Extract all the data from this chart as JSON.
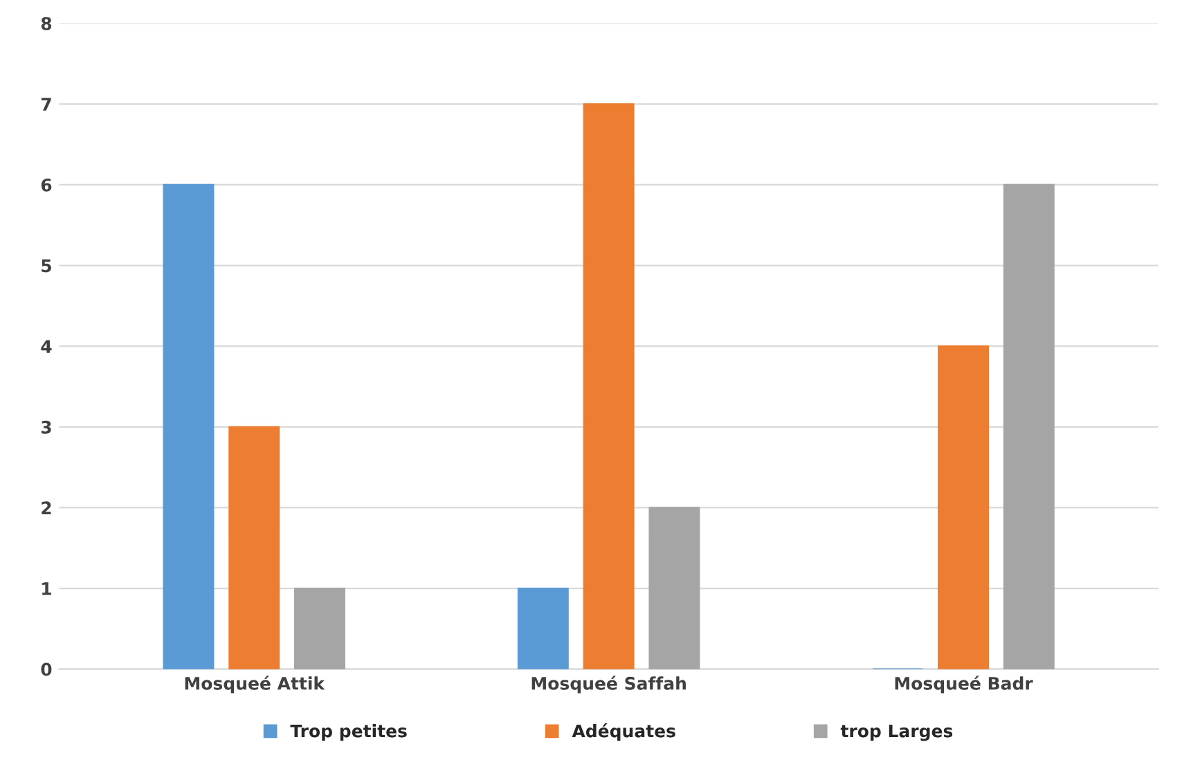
{
  "chart_data": {
    "type": "bar",
    "categories": [
      "Mosqueé Attik",
      "Mosqueé Saffah",
      "Mosqueé Badr"
    ],
    "series": [
      {
        "name": "Trop petites",
        "color": "#5b9bd5",
        "values": [
          6,
          1,
          0
        ]
      },
      {
        "name": "Adéquates",
        "color": "#ed7d31",
        "values": [
          3,
          7,
          4
        ]
      },
      {
        "name": "trop Larges",
        "color": "#a5a5a5",
        "values": [
          1,
          2,
          6
        ]
      }
    ],
    "ylim": [
      0,
      8
    ],
    "yticks": [
      0,
      1,
      2,
      3,
      4,
      5,
      6,
      7,
      8
    ],
    "grid": "y",
    "legend": "bottom"
  }
}
